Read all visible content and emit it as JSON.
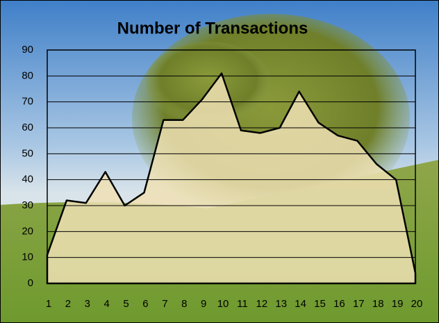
{
  "chart_data": {
    "type": "area",
    "title": "Number of Transactions",
    "categories": [
      "1",
      "2",
      "3",
      "4",
      "5",
      "6",
      "7",
      "8",
      "9",
      "10",
      "11",
      "12",
      "13",
      "14",
      "15",
      "16",
      "17",
      "18",
      "19",
      "20"
    ],
    "values": [
      11,
      32,
      31,
      43,
      30,
      35,
      63,
      63,
      71,
      81,
      59,
      58,
      60,
      74,
      62,
      57,
      55,
      46,
      40,
      4
    ],
    "color": "#efe0b4",
    "ylim": [
      0,
      90
    ],
    "yticks": [
      0,
      10,
      20,
      30,
      40,
      50,
      60,
      70,
      80,
      90
    ],
    "grid": true
  }
}
